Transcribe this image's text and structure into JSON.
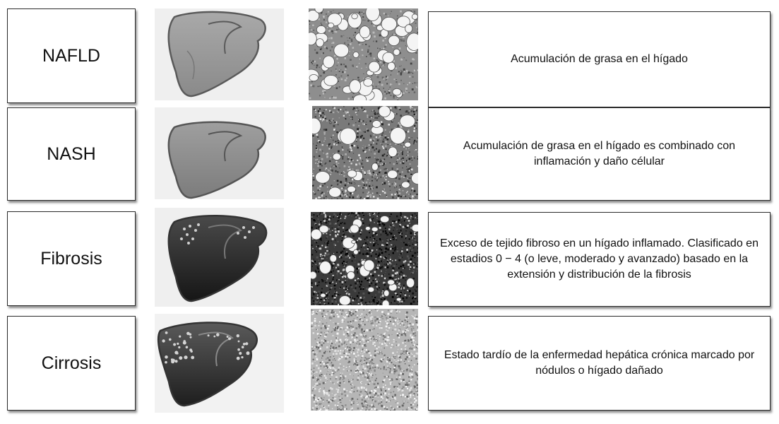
{
  "stages": [
    {
      "label": "NAFLD",
      "description": "Acumulación de grasa en el hígado",
      "liver_icon": "liver-fatty-icon",
      "histology": "fat-vacuoles-histology"
    },
    {
      "label": "NASH",
      "description": "Acumulación de grasa en el hígado es combinado con inflamación y daño célular",
      "liver_icon": "liver-inflamed-icon",
      "histology": "inflamed-fat-histology"
    },
    {
      "label": "Fibrosis",
      "description": "Exceso de tejido fibroso en un hígado inflamado. Clasificado en estadios 0 − 4 (o leve, moderado y avanzado) basado en la extensión y distribución de la fibrosis",
      "liver_icon": "liver-fibrotic-icon",
      "histology": "fibrotic-histology"
    },
    {
      "label": "Cirrosis",
      "description": "Estado tardío de la enfermedad hepática crónica marcado por nódulos o hígado dañado",
      "liver_icon": "liver-cirrhotic-icon",
      "histology": "cirrhotic-histology"
    }
  ]
}
